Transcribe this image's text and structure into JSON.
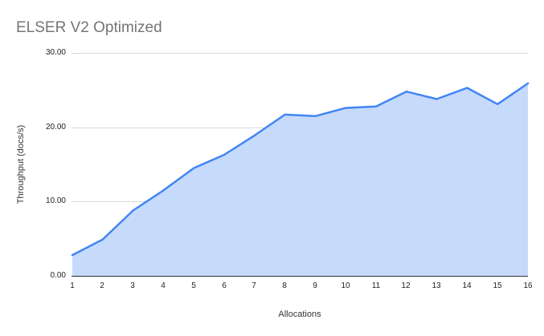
{
  "chart_data": {
    "type": "area",
    "title": "ELSER V2 Optimized",
    "xlabel": "Allocations",
    "ylabel": "Throughput (docs/s)",
    "categories": [
      "1",
      "2",
      "3",
      "4",
      "5",
      "6",
      "7",
      "8",
      "9",
      "10",
      "11",
      "12",
      "13",
      "14",
      "15",
      "16"
    ],
    "series": [
      {
        "name": "Throughput",
        "values": [
          2.8,
          4.9,
          8.8,
          11.5,
          14.5,
          16.3,
          18.9,
          21.7,
          21.5,
          22.6,
          22.8,
          24.8,
          23.8,
          25.3,
          23.1,
          25.9
        ]
      }
    ],
    "ylim": [
      0,
      30
    ],
    "yticks": [
      "0.00",
      "10.00",
      "20.00",
      "30.00"
    ],
    "grid": true,
    "legend_position": "none"
  },
  "colors": {
    "line": "#4285f4",
    "fill": "#c6dafc",
    "gridline": "#d9d9d9",
    "axis": "#333333",
    "title_text": "#757575",
    "tick_text": "#222222"
  }
}
